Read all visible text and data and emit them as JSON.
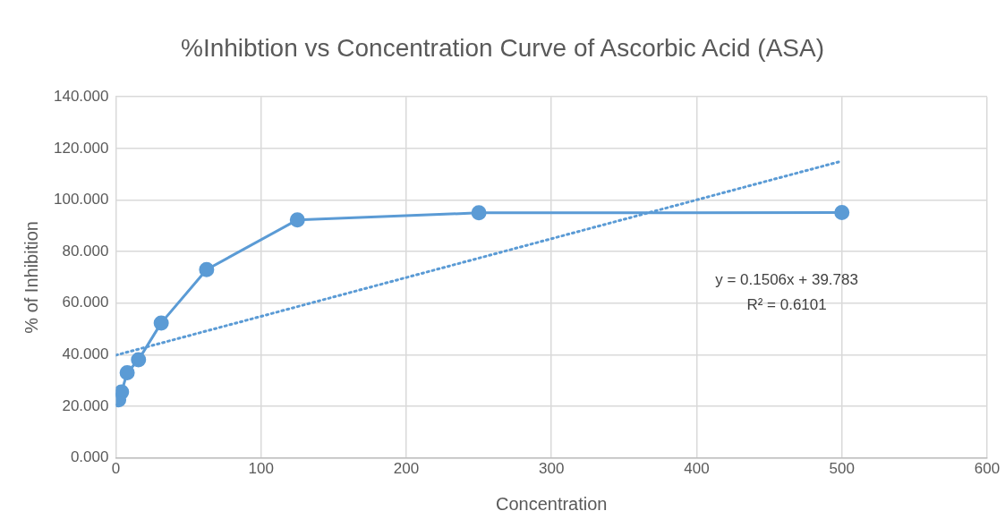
{
  "chart_data": {
    "type": "line",
    "title": "%Inhibtion vs Concentration Curve of Ascorbic Acid (ASA)",
    "xlabel": "Concentration",
    "ylabel": "% of Inhibition",
    "x": [
      1.95,
      3.9,
      7.8,
      15.6,
      31.25,
      62.5,
      125,
      250,
      500
    ],
    "series": [
      {
        "color": "#5b9bd5",
        "values": [
          22.5,
          25.5,
          33,
          38,
          52.3,
          73,
          92.3,
          95,
          95.1
        ],
        "marker": "circle",
        "line_style": "solid"
      },
      {
        "x": [
          0,
          500
        ],
        "color": "#5b9bd5",
        "values": [
          39.8,
          115.1
        ],
        "marker": "none",
        "line_style": "dotted"
      }
    ],
    "xlim": [
      0,
      600
    ],
    "xticks": [
      0,
      100,
      200,
      300,
      400,
      500,
      600
    ],
    "ylim": [
      0,
      140
    ],
    "yticks": [
      {
        "value": 0,
        "label": "0.000"
      },
      {
        "value": 20,
        "label": "20.000"
      },
      {
        "value": 40,
        "label": "40.000"
      },
      {
        "value": 60,
        "label": "60.000"
      },
      {
        "value": 80,
        "label": "80.000"
      },
      {
        "value": 100,
        "label": "100.000"
      },
      {
        "value": 120,
        "label": "120.000"
      },
      {
        "value": 140,
        "label": "140.000"
      }
    ],
    "grid": true,
    "legend": false,
    "annotations": [
      "y = 0.1506x + 39.783",
      "R² = 0.6101"
    ]
  }
}
